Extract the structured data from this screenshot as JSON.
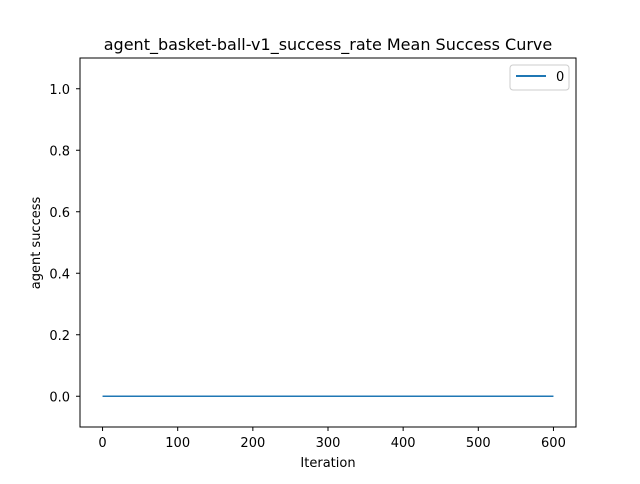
{
  "chart_data": {
    "type": "line",
    "title": "agent_basket-ball-v1_success_rate Mean Success Curve",
    "xlabel": "Iteration",
    "ylabel": "agent success",
    "xlim": [
      -30,
      630
    ],
    "ylim": [
      -0.1,
      1.1
    ],
    "xticks": [
      0,
      100,
      200,
      300,
      400,
      500,
      600
    ],
    "yticks": [
      0.0,
      0.2,
      0.4,
      0.6,
      0.8,
      1.0
    ],
    "xtick_labels": [
      "0",
      "100",
      "200",
      "300",
      "400",
      "500",
      "600"
    ],
    "ytick_labels": [
      "0.0",
      "0.2",
      "0.4",
      "0.6",
      "0.8",
      "1.0"
    ],
    "grid": false,
    "legend_position": "top-right",
    "series": [
      {
        "name": "0",
        "color": "#1f77b4",
        "x": [
          0,
          600
        ],
        "y": [
          0.0,
          0.0
        ]
      }
    ]
  }
}
